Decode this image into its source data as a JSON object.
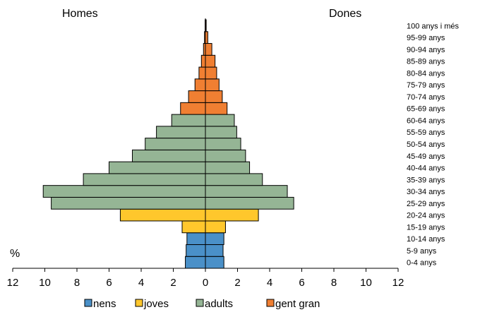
{
  "chart_data": {
    "type": "bar",
    "orientation": "horizontal",
    "subtype": "population-pyramid",
    "left_label": "Homes",
    "right_label": "Dones",
    "unit_label": "%",
    "xlim": [
      -12,
      12
    ],
    "x_ticks": [
      12,
      10,
      8,
      6,
      4,
      2,
      0,
      2,
      4,
      6,
      8,
      10,
      12
    ],
    "categories": [
      "0-4 anys",
      "5-9 anys",
      "10-14 anys",
      "15-19 anys",
      "20-24 anys",
      "25-29 anys",
      "30-34 anys",
      "35-39 anys",
      "40-44 anys",
      "45-49 anys",
      "50-54 anys",
      "55-59 anys",
      "60-64 anys",
      "65-69 anys",
      "70-74 anys",
      "75-79 anys",
      "80-84 anys",
      "85-89 anys",
      "90-94 anys",
      "95-99 anys",
      "100 anys i més"
    ],
    "homes": [
      1.25,
      1.2,
      1.15,
      1.45,
      5.3,
      9.6,
      10.1,
      7.6,
      6.0,
      4.55,
      3.75,
      3.05,
      2.1,
      1.55,
      1.05,
      0.65,
      0.4,
      0.25,
      0.12,
      0.06,
      0.02
    ],
    "dones": [
      1.15,
      1.1,
      1.15,
      1.25,
      3.3,
      5.5,
      5.1,
      3.55,
      2.75,
      2.5,
      2.2,
      1.95,
      1.8,
      1.35,
      1.05,
      0.85,
      0.7,
      0.6,
      0.4,
      0.15,
      0.05
    ],
    "groups": [
      "nens",
      "nens",
      "nens",
      "joves",
      "joves",
      "adults",
      "adults",
      "adults",
      "adults",
      "adults",
      "adults",
      "adults",
      "adults",
      "gent gran",
      "gent gran",
      "gent gran",
      "gent gran",
      "gent gran",
      "gent gran",
      "gent gran",
      "gent gran"
    ],
    "legend": [
      {
        "name": "nens",
        "color": "#4a90c8"
      },
      {
        "name": "joves",
        "color": "#ffc72c"
      },
      {
        "name": "adults",
        "color": "#95b595"
      },
      {
        "name": "gent gran",
        "color": "#f07f32"
      }
    ],
    "legend_position": "bottom",
    "grid": false
  }
}
